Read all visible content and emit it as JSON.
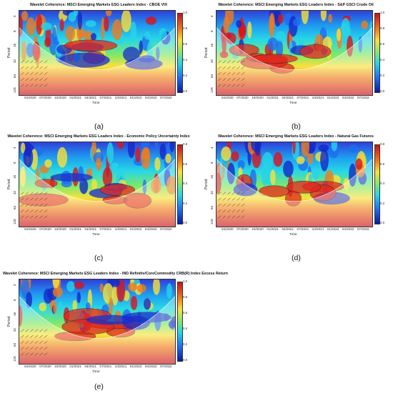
{
  "panels": [
    {
      "id": "a",
      "title": "Wavelet Coherence: MSCI Emerging Markets ESG Leaders Index - CBOE VIX",
      "caption": "(a)",
      "y_axis_label": "Period",
      "x_axis_label": "Time",
      "y_ticks": [
        "4",
        "8",
        "16",
        "32",
        "64",
        "128"
      ],
      "x_ticks": [
        "04/2020",
        "07/2020",
        "10/2020",
        "01/2021",
        "04/2021",
        "07/2021",
        "10/2021",
        "01/2022",
        "04/2022",
        "07/2022"
      ],
      "colorbar_ticks": [
        "1.0",
        "0.8",
        "0.6",
        "0.4",
        "0.2",
        "0.0"
      ]
    },
    {
      "id": "b",
      "title": "Wavelet Coherence: MSCI Emerging Markets ESG Leaders Index - S&P GSCI Crude Oil",
      "caption": "(b)",
      "y_axis_label": "Period",
      "x_axis_label": "Time",
      "y_ticks": [
        "4",
        "8",
        "16",
        "32",
        "64",
        "128"
      ],
      "x_ticks": [
        "04/2020",
        "07/2020",
        "10/2020",
        "01/2021",
        "04/2021",
        "07/2021",
        "10/2021",
        "01/2022",
        "04/2022",
        "07/2022"
      ],
      "colorbar_ticks": [
        "1.0",
        "0.8",
        "0.6",
        "0.4",
        "0.2",
        "0.0"
      ]
    },
    {
      "id": "c",
      "title": "Wavelet Coherence: MSCI Emerging Markets ESG Leaders Index - Economic Policy Uncertainty Index",
      "caption": "(c)",
      "y_axis_label": "Period",
      "x_axis_label": "Time",
      "y_ticks": [
        "4",
        "8",
        "16",
        "32",
        "64",
        "128"
      ],
      "x_ticks": [
        "04/2020",
        "07/2020",
        "10/2020",
        "01/2021",
        "04/2021",
        "07/2021",
        "10/2021",
        "01/2022",
        "04/2022",
        "07/2022"
      ],
      "colorbar_ticks": [
        "0.8",
        "0.6",
        "0.4",
        "0.2",
        "0.0"
      ]
    },
    {
      "id": "d",
      "title": "Wavelet Coherence: MSCI Emerging Markets ESG Leaders Index - Natural Gas Futures",
      "caption": "(d)",
      "y_axis_label": "Period",
      "x_axis_label": "Time",
      "y_ticks": [
        "4",
        "8",
        "16",
        "32",
        "64",
        "128"
      ],
      "x_ticks": [
        "04/2020",
        "07/2020",
        "10/2020",
        "01/2021",
        "04/2021",
        "07/2021",
        "10/2021",
        "01/2022",
        "04/2022",
        "07/2022"
      ],
      "colorbar_ticks": [
        "0.8",
        "0.6",
        "0.4",
        "0.2",
        "0.0"
      ]
    },
    {
      "id": "e",
      "title": "Wavelet Coherence: MSCI Emerging Markets ESG Leaders Index - IND Refinitiv/CoreCommodity CRB(R) Index Excess Return",
      "caption": "(e)",
      "y_axis_label": "Period",
      "x_axis_label": "Time",
      "y_ticks": [
        "4",
        "8",
        "16",
        "32",
        "64",
        "128"
      ],
      "x_ticks": [
        "04/2020",
        "07/2020",
        "10/2020",
        "01/2021",
        "04/2021",
        "07/2021",
        "10/2021",
        "01/2022",
        "04/2022",
        "07/2022"
      ],
      "colorbar_ticks": [
        "1.0",
        "0.8",
        "0.6",
        "0.4",
        "0.2",
        "0.0"
      ]
    }
  ]
}
